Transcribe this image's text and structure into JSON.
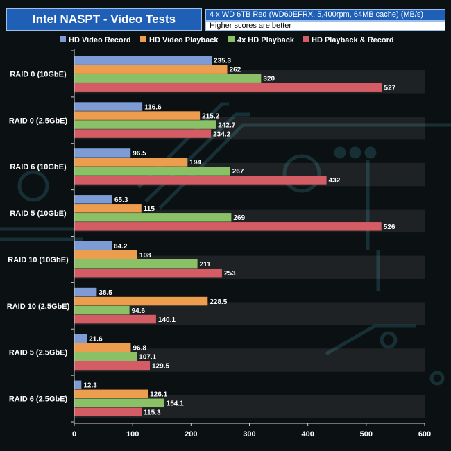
{
  "chart_data": {
    "type": "bar",
    "orientation": "horizontal",
    "title": "Intel NASPT - Video Tests",
    "subtitle": "4 x WD 6TB Red (WD60EFRX, 5,400rpm, 64MB cache) (MB/s)",
    "note": "Higher scores are better",
    "categories": [
      "RAID 0 (10GbE)",
      "RAID 0 (2.5GbE)",
      "RAID 6 (10GbE)",
      "RAID 5 (10GbE)",
      "RAID 10 (10GbE)",
      "RAID 10 (2.5GbE)",
      "RAID 5 (2.5GbE)",
      "RAID 6 (2.5GbE)"
    ],
    "series": [
      {
        "name": "HD Video Record",
        "color": "#7d9bd5",
        "values": [
          235.3,
          116.6,
          96.5,
          65.3,
          64.2,
          38.5,
          21.6,
          12.3
        ]
      },
      {
        "name": "HD Video Playback",
        "color": "#ec9d4d",
        "values": [
          262,
          215.2,
          194,
          115,
          108,
          228.5,
          96.8,
          126.1
        ]
      },
      {
        "name": "4x HD Playback",
        "color": "#8bc166",
        "values": [
          320,
          242.7,
          267,
          269,
          211,
          94.6,
          107.1,
          154.1
        ]
      },
      {
        "name": "HD Playback & Record",
        "color": "#d45c64",
        "values": [
          527,
          234.2,
          432,
          526,
          253,
          140.1,
          129.5,
          115.3
        ]
      }
    ],
    "x_ticks": [
      0,
      100,
      200,
      300,
      400,
      500,
      600
    ],
    "xlim": [
      0,
      600
    ],
    "legend_position": "top",
    "grid": false
  }
}
